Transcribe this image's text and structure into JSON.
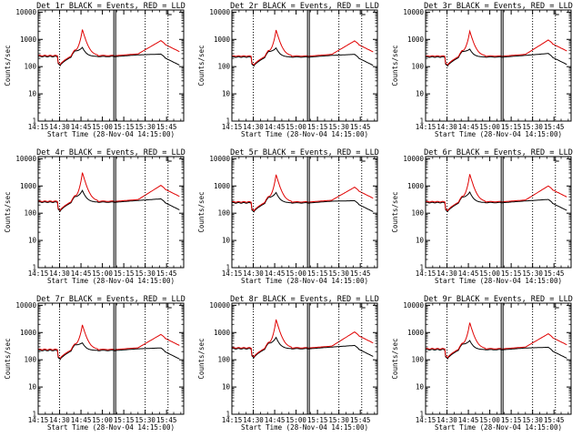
{
  "chart_data": {
    "type": "line",
    "xlabel": "Start Time (28-Nov-04 14:15:00)",
    "ylabel": "Counts/sec",
    "x_tick_labels": [
      "14:15",
      "14:30",
      "14:45",
      "15:00",
      "15:15",
      "15:30",
      "15:45"
    ],
    "x_ticks_min": [
      0,
      15,
      30,
      45,
      60,
      75,
      90
    ],
    "xlim_min": [
      0,
      102
    ],
    "y_scale": "log",
    "ylim": [
      1,
      12000
    ],
    "y_tick_values": [
      1,
      10,
      100,
      1000,
      10000
    ],
    "y_tick_labels": [
      "1",
      "10",
      "100",
      "1000",
      "10000"
    ],
    "dotted_vlines_min": [
      15,
      75,
      91
    ],
    "solid_vlines_min": [
      53,
      54.3
    ],
    "series_colors": {
      "events": "#000000",
      "lld": "#e00000"
    },
    "panels": [
      {
        "title": "Det 1r BLACK = Events, RED = LLD",
        "peak_lld": 2300,
        "late_lld": 900,
        "events_base": 235,
        "lld_base": 255
      },
      {
        "title": "Det 2r BLACK = Events, RED = LLD",
        "peak_lld": 2200,
        "late_lld": 880,
        "events_base": 225,
        "lld_base": 245
      },
      {
        "title": "Det 3r BLACK = Events, RED = LLD",
        "peak_lld": 2000,
        "late_lld": 950,
        "events_base": 225,
        "lld_base": 245
      },
      {
        "title": "Det 4r BLACK = Events, RED = LLD",
        "peak_lld": 3100,
        "late_lld": 1050,
        "events_base": 255,
        "lld_base": 275
      },
      {
        "title": "Det 5r BLACK = Events, RED = LLD",
        "peak_lld": 2600,
        "late_lld": 900,
        "events_base": 240,
        "lld_base": 260
      },
      {
        "title": "Det 6r BLACK = Events, RED = LLD",
        "peak_lld": 2700,
        "late_lld": 1000,
        "events_base": 245,
        "lld_base": 265
      },
      {
        "title": "Det 7r BLACK = Events, RED = LLD",
        "peak_lld": 1900,
        "late_lld": 850,
        "events_base": 220,
        "lld_base": 240
      },
      {
        "title": "Det 8r BLACK = Events, RED = LLD",
        "peak_lld": 3000,
        "late_lld": 1050,
        "events_base": 255,
        "lld_base": 275
      },
      {
        "title": "Det 9r BLACK = Events, RED = LLD",
        "peak_lld": 2300,
        "late_lld": 900,
        "events_base": 235,
        "lld_base": 255
      }
    ]
  }
}
